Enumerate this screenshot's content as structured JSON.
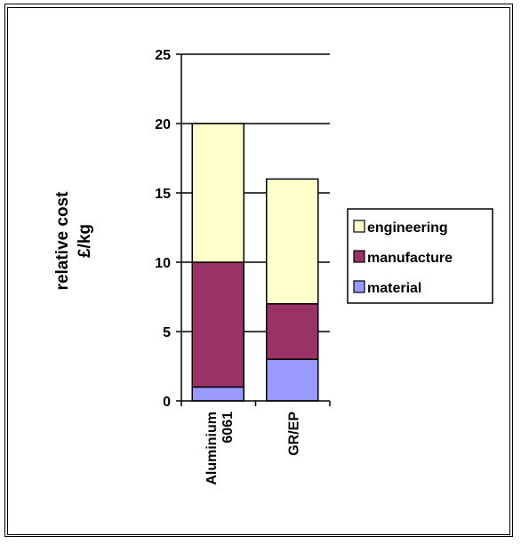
{
  "chart_data": {
    "type": "bar",
    "stacked": true,
    "categories": [
      [
        "Aluminium",
        "6061"
      ],
      [
        "GR/EP"
      ]
    ],
    "series": [
      {
        "name": "material",
        "values": [
          1,
          3
        ],
        "color": "#9999ff"
      },
      {
        "name": "manufacture",
        "values": [
          9,
          4
        ],
        "color": "#993366"
      },
      {
        "name": "engineering",
        "values": [
          10,
          9
        ],
        "color": "#ffffcc"
      }
    ],
    "ylabel": [
      "relative cost",
      "£/kg"
    ],
    "xlabel": "",
    "title": "",
    "ylim": [
      0,
      25
    ],
    "yticks": [
      0,
      5,
      10,
      15,
      20,
      25
    ],
    "grid": true,
    "legend_position": "right"
  }
}
